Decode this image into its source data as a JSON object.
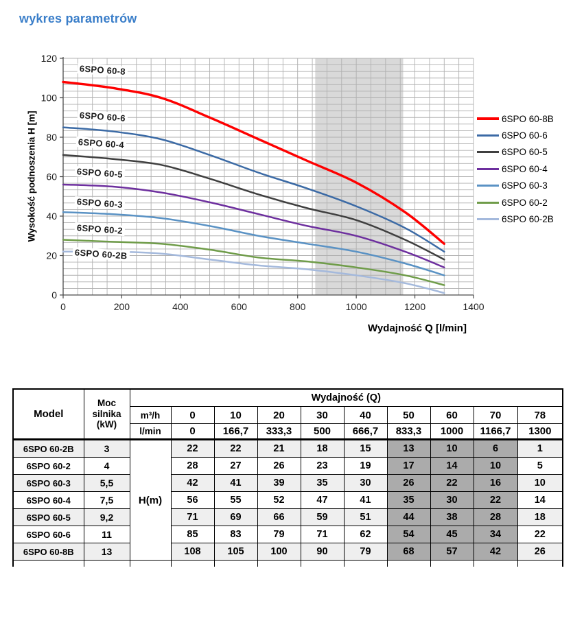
{
  "page_title": "wykres parametrów",
  "accent_color": "#3a7ec9",
  "chart_data": {
    "type": "line",
    "title": "",
    "xlabel": "Wydajność Q [l/min]",
    "ylabel": "Wysokość podnoszenia H [m]",
    "xlim": [
      0,
      1400
    ],
    "ylim": [
      0,
      120
    ],
    "xticks": [
      0,
      200,
      400,
      600,
      800,
      1000,
      1200,
      1400
    ],
    "yticks": [
      0,
      20,
      40,
      60,
      80,
      100,
      120
    ],
    "grid": {
      "on": true,
      "x_minor_step": 50,
      "y_minor_step": 3.333,
      "color": "#b0b0b0"
    },
    "highlight_band": {
      "x0": 860,
      "x1": 1160,
      "color": "#d9d9d9"
    },
    "legend_position": "right",
    "x": [
      0,
      166.7,
      333.3,
      500,
      666.7,
      833.3,
      1000,
      1166.7,
      1300
    ],
    "series": [
      {
        "name": "6SPO 60-8B",
        "color": "#fe0000",
        "width": 3.4,
        "values": [
          108,
          105,
          100,
          90,
          79,
          68,
          57,
          42,
          26
        ]
      },
      {
        "name": "6SPO 60-6",
        "color": "#3b6aa5",
        "width": 2.5,
        "values": [
          85,
          83,
          79,
          71,
          62,
          54,
          45,
          34,
          22
        ]
      },
      {
        "name": "6SPO 60-5",
        "color": "#3f3f3f",
        "width": 2.5,
        "values": [
          71,
          69,
          66,
          59,
          51,
          44,
          38,
          28,
          18
        ]
      },
      {
        "name": "6SPO 60-4",
        "color": "#6d2f9e",
        "width": 2.5,
        "values": [
          56,
          55,
          52,
          47,
          41,
          35,
          30,
          22,
          14
        ]
      },
      {
        "name": "6SPO 60-3",
        "color": "#5a92c4",
        "width": 2.5,
        "values": [
          42,
          41,
          39,
          35,
          30,
          26,
          22,
          16,
          10
        ]
      },
      {
        "name": "6SPO 60-2",
        "color": "#6f9c49",
        "width": 2.5,
        "values": [
          28,
          27,
          26,
          23,
          19,
          17,
          14,
          10,
          5
        ]
      },
      {
        "name": "6SPO 60-2B",
        "color": "#a4b9dc",
        "width": 2.5,
        "values": [
          22,
          22,
          21,
          18,
          15,
          13,
          10,
          6,
          1
        ]
      }
    ],
    "curve_labels": [
      "6SPO 60-8",
      "6SPO 60-6",
      "6SPO 60-4",
      "6SPO 60-5",
      "6SPO 60-3",
      "6SPO 60-2",
      "6SPO 60-2B"
    ]
  },
  "table": {
    "header": {
      "model": "Model",
      "power": "Moc silnika (kW)",
      "flow_title": "Wydajność (Q)",
      "unit_row1_label": "m³/h",
      "unit_row2_label": "l/min",
      "m3h": [
        "0",
        "10",
        "20",
        "30",
        "40",
        "50",
        "60",
        "70",
        "78"
      ],
      "lmin": [
        "0",
        "166,7",
        "333,3",
        "500",
        "666,7",
        "833,3",
        "1000",
        "1166,7",
        "1300"
      ],
      "h_label": "H(m)"
    },
    "rows": [
      {
        "model": "6SPO 60-2B",
        "power": "3",
        "values": [
          "22",
          "22",
          "21",
          "18",
          "15",
          "13",
          "10",
          "6",
          "1"
        ]
      },
      {
        "model": "6SPO 60-2",
        "power": "4",
        "values": [
          "28",
          "27",
          "26",
          "23",
          "19",
          "17",
          "14",
          "10",
          "5"
        ]
      },
      {
        "model": "6SPO 60-3",
        "power": "5,5",
        "values": [
          "42",
          "41",
          "39",
          "35",
          "30",
          "26",
          "22",
          "16",
          "10"
        ]
      },
      {
        "model": "6SPO 60-4",
        "power": "7,5",
        "values": [
          "56",
          "55",
          "52",
          "47",
          "41",
          "35",
          "30",
          "22",
          "14"
        ]
      },
      {
        "model": "6SPO 60-5",
        "power": "9,2",
        "values": [
          "71",
          "69",
          "66",
          "59",
          "51",
          "44",
          "38",
          "28",
          "18"
        ]
      },
      {
        "model": "6SPO 60-6",
        "power": "11",
        "values": [
          "85",
          "83",
          "79",
          "71",
          "62",
          "54",
          "45",
          "34",
          "22"
        ]
      },
      {
        "model": "6SPO 60-8B",
        "power": "13",
        "values": [
          "108",
          "105",
          "100",
          "90",
          "79",
          "68",
          "57",
          "42",
          "26"
        ]
      }
    ],
    "shaded_value_cols": [
      5,
      6,
      7
    ],
    "colors": {
      "row_alt": "#efefef",
      "band_col": "#ababab",
      "border": "#000000"
    }
  }
}
